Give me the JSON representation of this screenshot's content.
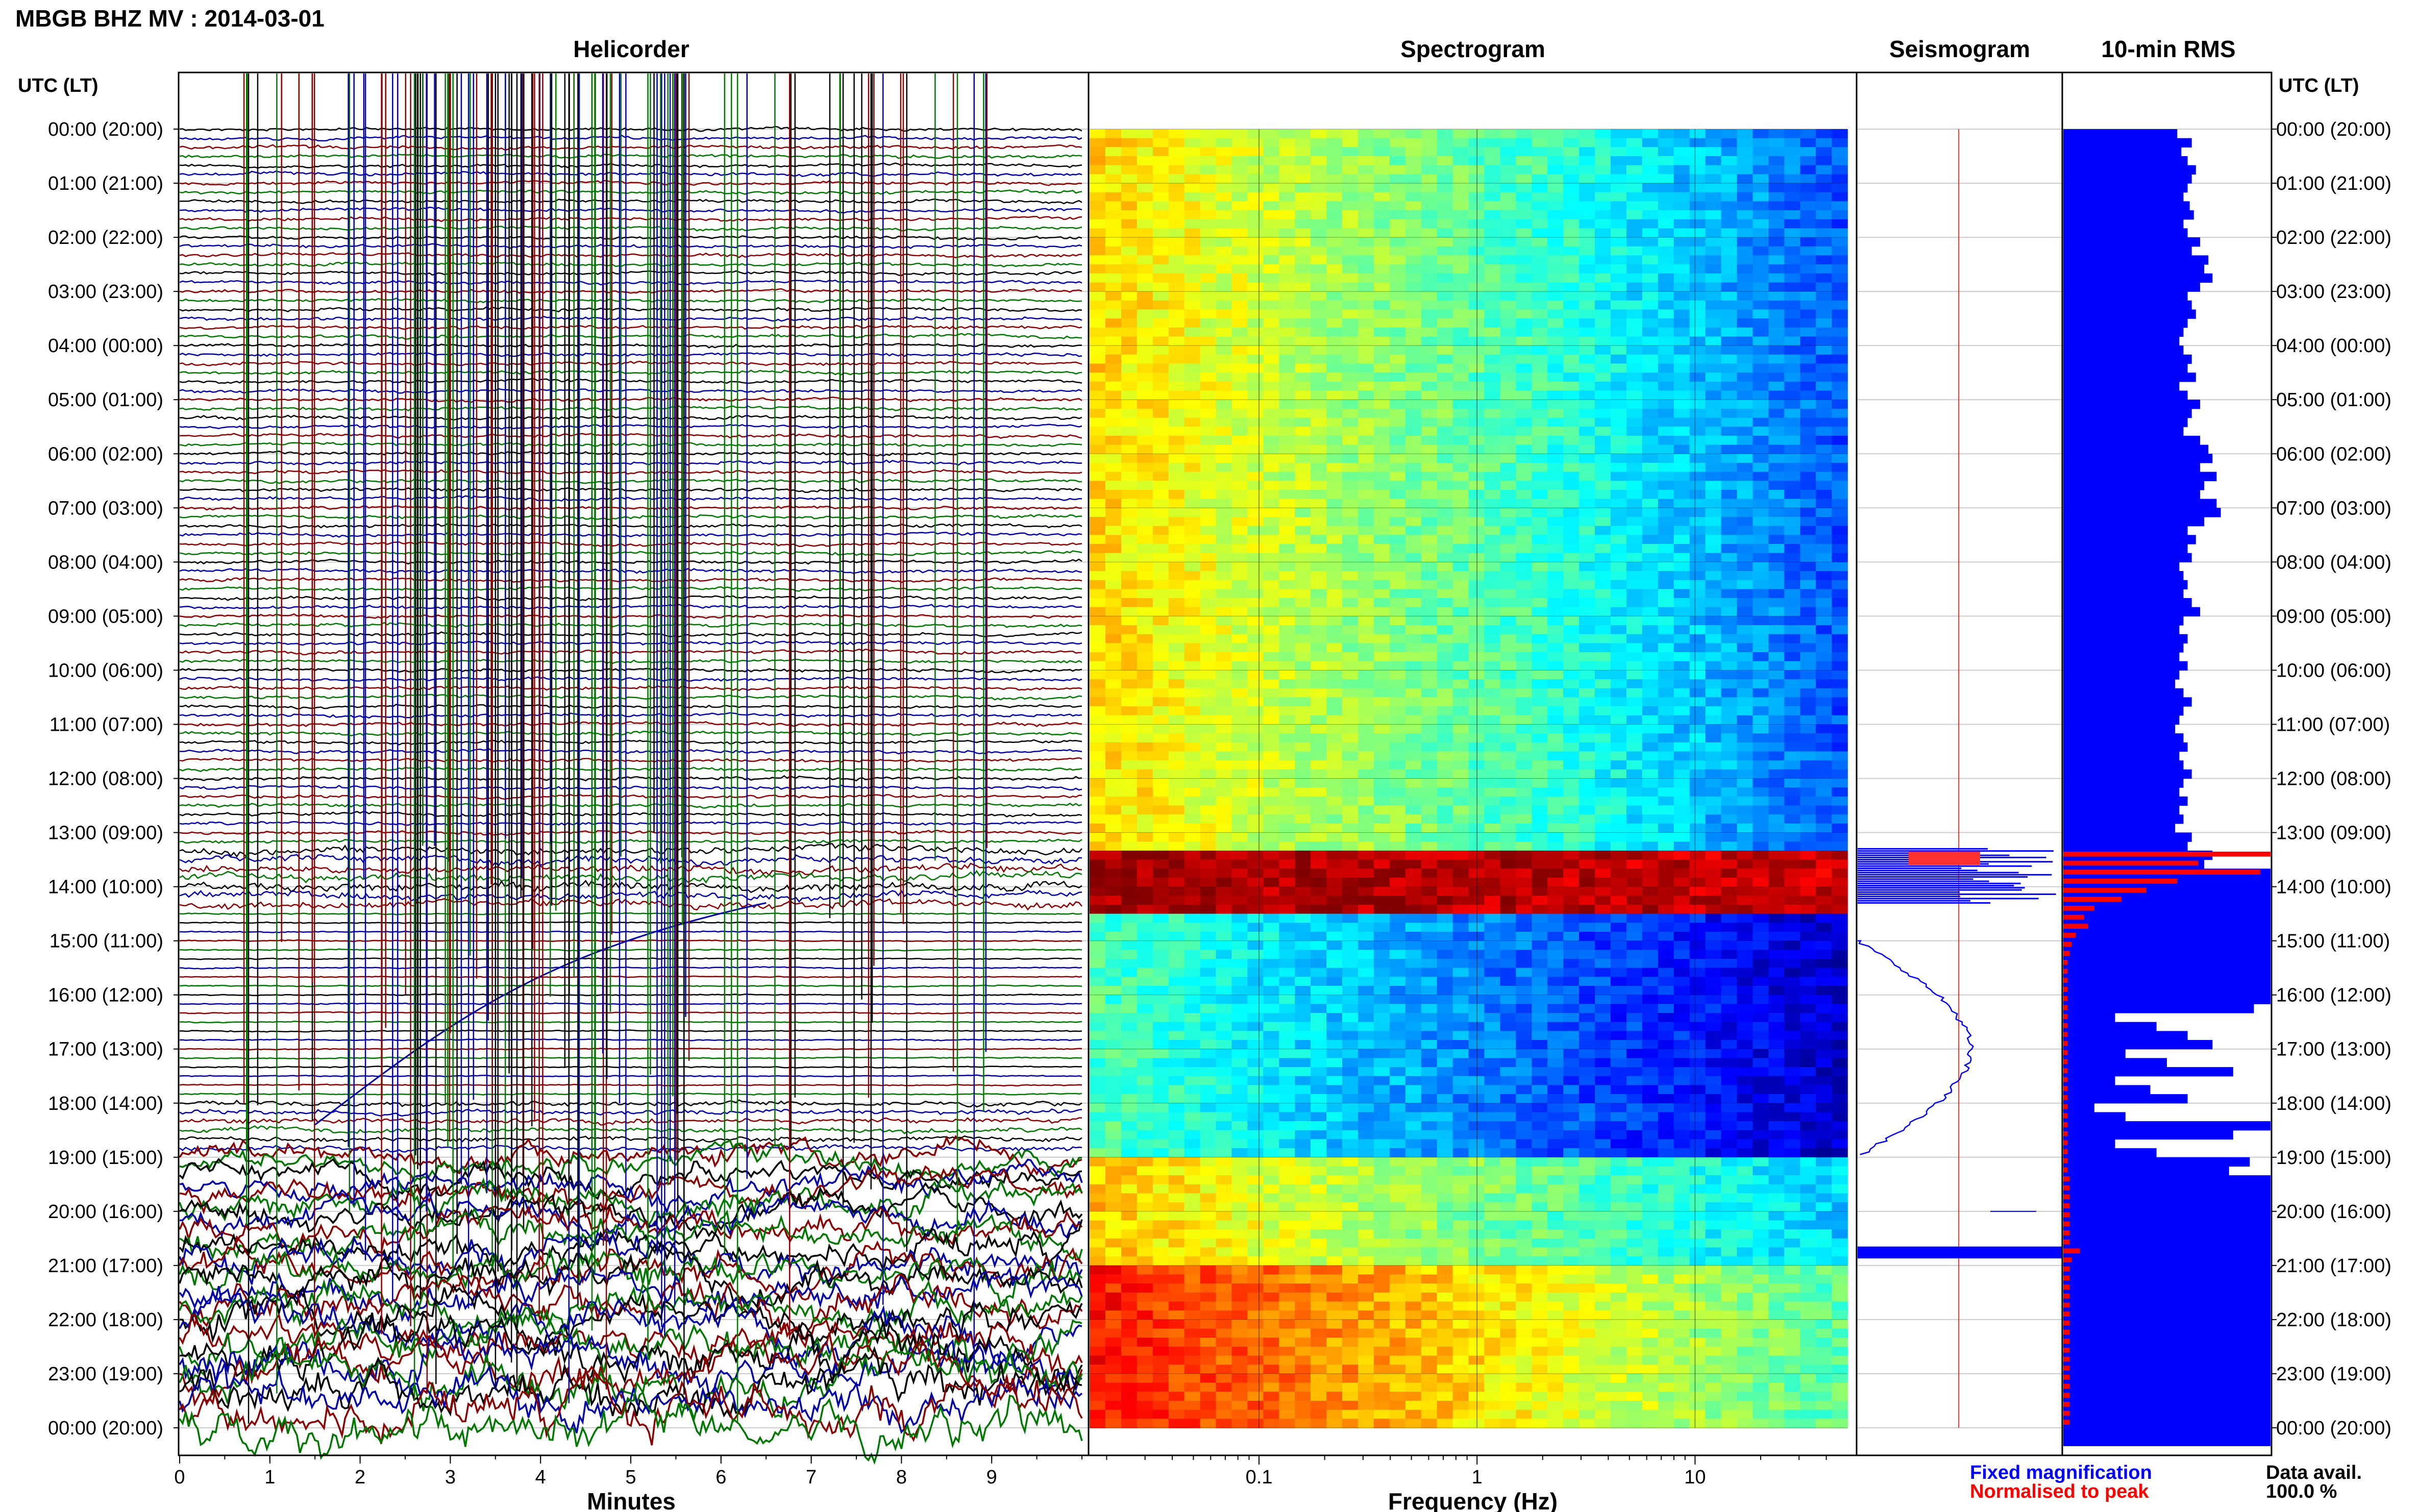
{
  "figure": {
    "title": "MBGB BHZ MV : 2014-03-01",
    "panel_titles": {
      "helicorder": "Helicorder",
      "spectrogram": "Spectrogram",
      "seismogram": "Seismogram",
      "rms": "10-min RMS"
    },
    "utc_header_left": "UTC (LT)",
    "utc_header_right": "UTC (LT)",
    "xlabel_minutes": "Minutes",
    "xlabel_frequency": "Frequency (Hz)",
    "legend_fixed": "Fixed magnification",
    "legend_normalised": "Normalised to peak",
    "data_avail_label": "Data avail.",
    "data_avail_value": "100.0 %",
    "colors": {
      "fixed": "#0000ff",
      "normalised": "#ff0000",
      "trace_cycle": [
        "#000000",
        "#0000aa",
        "#8b0000",
        "#007700"
      ]
    }
  },
  "chart_data": [
    {
      "type": "line",
      "title": "Helicorder",
      "xlabel": "Minutes",
      "x_ticks": [
        "0",
        "1",
        "2",
        "3",
        "4",
        "5",
        "6",
        "7",
        "8",
        "9"
      ],
      "xlim": [
        0,
        10
      ],
      "ylabel": "UTC (LT)",
      "y_ticks": [
        "00:00 (20:00)",
        "01:00 (21:00)",
        "02:00 (22:00)",
        "03:00 (23:00)",
        "04:00 (00:00)",
        "05:00 (01:00)",
        "06:00 (02:00)",
        "07:00 (03:00)",
        "08:00 (04:00)",
        "09:00 (05:00)",
        "10:00 (06:00)",
        "11:00 (07:00)",
        "12:00 (08:00)",
        "13:00 (09:00)",
        "14:00 (10:00)",
        "15:00 (11:00)",
        "16:00 (12:00)",
        "17:00 (13:00)",
        "18:00 (14:00)",
        "19:00 (15:00)",
        "20:00 (16:00)",
        "21:00 (17:00)",
        "22:00 (18:00)",
        "23:00 (19:00)",
        "00:00 (20:00)"
      ],
      "ylim_hours": [
        0,
        24
      ],
      "lines_count": 144,
      "line_minutes": 10,
      "grid": true
    },
    {
      "type": "heatmap",
      "title": "Spectrogram",
      "xlabel": "Frequency (Hz)",
      "x_scale": "log",
      "x_ticks": [
        "0.1",
        "1",
        "10"
      ],
      "xlim_hz": [
        0.0167,
        50
      ],
      "ylim_hours": [
        0,
        24
      ],
      "colormap": "jet",
      "bands_hours": [
        {
          "start": 0,
          "end": 13.3,
          "level": "moderate"
        },
        {
          "start": 13.3,
          "end": 14.4,
          "level": "very high"
        },
        {
          "start": 14.4,
          "end": 19.0,
          "level": "low"
        },
        {
          "start": 19.0,
          "end": 21.0,
          "level": "moderate-high"
        },
        {
          "start": 21.0,
          "end": 24.0,
          "level": "high"
        }
      ]
    },
    {
      "type": "line",
      "title": "Seismogram",
      "ylim_hours": [
        0,
        24
      ],
      "series": []
    },
    {
      "type": "bar",
      "title": "10-min RMS",
      "orientation": "horizontal",
      "ylim_hours": [
        0,
        24
      ],
      "xlim": [
        0,
        1
      ],
      "values": [
        0.55,
        0.62,
        0.57,
        0.6,
        0.64,
        0.62,
        0.6,
        0.58,
        0.61,
        0.63,
        0.58,
        0.6,
        0.66,
        0.62,
        0.7,
        0.68,
        0.72,
        0.66,
        0.6,
        0.62,
        0.64,
        0.6,
        0.58,
        0.56,
        0.58,
        0.62,
        0.6,
        0.64,
        0.56,
        0.6,
        0.66,
        0.62,
        0.6,
        0.58,
        0.66,
        0.7,
        0.72,
        0.66,
        0.74,
        0.68,
        0.66,
        0.74,
        0.76,
        0.68,
        0.6,
        0.64,
        0.6,
        0.62,
        0.56,
        0.58,
        0.6,
        0.58,
        0.62,
        0.66,
        0.58,
        0.56,
        0.6,
        0.58,
        0.56,
        0.6,
        0.56,
        0.54,
        0.58,
        0.62,
        0.58,
        0.56,
        0.54,
        0.58,
        0.6,
        0.56,
        0.58,
        0.62,
        0.58,
        0.56,
        0.6,
        0.56,
        0.58,
        0.54,
        0.62,
        0.6,
        0.72,
        0.68,
        1.0,
        1.0,
        1.0,
        1.0,
        1.0,
        1.0,
        1.0,
        1.0,
        1.0,
        1.0,
        1.0,
        1.0,
        1.0,
        1.0,
        1.0,
        0.92,
        0.25,
        0.45,
        0.6,
        0.72,
        0.3,
        0.5,
        0.82,
        0.25,
        0.42,
        0.6,
        0.15,
        0.3,
        1.0,
        0.82,
        0.25,
        0.45,
        0.9,
        0.8,
        1.0,
        1.0,
        1.0,
        1.0,
        1.0,
        1.0,
        1.0,
        1.0,
        1.0,
        1.0,
        1.0,
        1.0,
        1.0,
        1.0,
        1.0,
        1.0,
        1.0,
        1.0,
        1.0,
        1.0,
        1.0,
        1.0,
        1.0,
        1.0,
        1.0,
        1.0,
        1.0,
        1.0,
        1.0,
        1.0
      ],
      "normalised_values": [
        0,
        0,
        0,
        0,
        0,
        0,
        0,
        0,
        0,
        0,
        0,
        0,
        0,
        0,
        0,
        0,
        0,
        0,
        0,
        0,
        0,
        0,
        0,
        0,
        0,
        0,
        0,
        0,
        0,
        0,
        0,
        0,
        0,
        0,
        0,
        0,
        0,
        0,
        0,
        0,
        0,
        0,
        0,
        0,
        0,
        0,
        0,
        0,
        0,
        0,
        0,
        0,
        0,
        0,
        0,
        0,
        0,
        0,
        0,
        0,
        0,
        0,
        0,
        0,
        0,
        0,
        0,
        0,
        0,
        0,
        0,
        0,
        0,
        0,
        0,
        0,
        0,
        0,
        0,
        0,
        1.0,
        0.65,
        0.95,
        0.55,
        0.4,
        0.28,
        0.15,
        0.1,
        0.12,
        0.06,
        0.04,
        0.03,
        0.02,
        0.02,
        0.02,
        0.02,
        0.02,
        0.02,
        0.02,
        0.02,
        0.02,
        0.02,
        0.02,
        0.02,
        0.02,
        0.02,
        0.02,
        0.02,
        0.02,
        0.02,
        0.02,
        0.02,
        0.02,
        0.02,
        0.02,
        0.02,
        0.03,
        0.03,
        0.03,
        0.03,
        0.03,
        0.03,
        0.03,
        0.03,
        0.08,
        0.04,
        0.03,
        0.03,
        0.03,
        0.03,
        0.03,
        0.03,
        0.03,
        0.03,
        0.03,
        0.03,
        0.03,
        0.03,
        0.03,
        0.03,
        0.03,
        0.03,
        0.03,
        0.03
      ]
    }
  ]
}
